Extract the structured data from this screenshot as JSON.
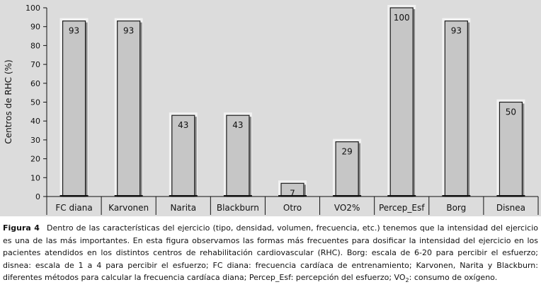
{
  "chart_data": {
    "type": "bar",
    "title": "",
    "xlabel": "",
    "ylabel": "Centros de RHC (%)",
    "ylim": [
      0,
      100
    ],
    "yticks": [
      0,
      10,
      20,
      30,
      40,
      50,
      60,
      70,
      80,
      90,
      100
    ],
    "grid": false,
    "categories": [
      "FC diana",
      "Karvonen",
      "Narita",
      "Blackburn",
      "Otro",
      "VO2%",
      "Percep_Esf",
      "Borg",
      "Disnea"
    ],
    "values": [
      93,
      93,
      43,
      43,
      7,
      29,
      100,
      93,
      50
    ],
    "data_labels": [
      "93",
      "93",
      "43",
      "43",
      "7",
      "29",
      "100",
      "93",
      "50"
    ],
    "colors": {
      "bar": "#c6c6c6",
      "bar_stroke": "#1a1a1a",
      "plot_bg": "#dcdcdc",
      "glow": "#f4f4f4"
    }
  },
  "caption": {
    "label": "Figura 4",
    "text_before": "Dentro de las características del ejercicio (tipo, densidad, volumen, frecuencia, etc.) tenemos que la intensidad del ejercicio es una de las más importantes. En esta figura observamos las formas más frecuentes para dosificar la intensidad del ejercicio en los pacientes atendidos en los distintos centros de rehabilitación cardiovascular (RHC). Borg: escala de 6-20 para percibir el esfuerzo; disnea: escala de 1 a 4 para percibir el esfuerzo; FC diana: frecuencia cardíaca de entrenamiento; Karvonen, Narita y Blackburn: diferentes métodos para calcular la frecuencia cardíaca diana; Percep_Esf: percepción del esfuerzo; VO",
    "subscript": "2",
    "text_after": ": consumo de oxígeno."
  }
}
